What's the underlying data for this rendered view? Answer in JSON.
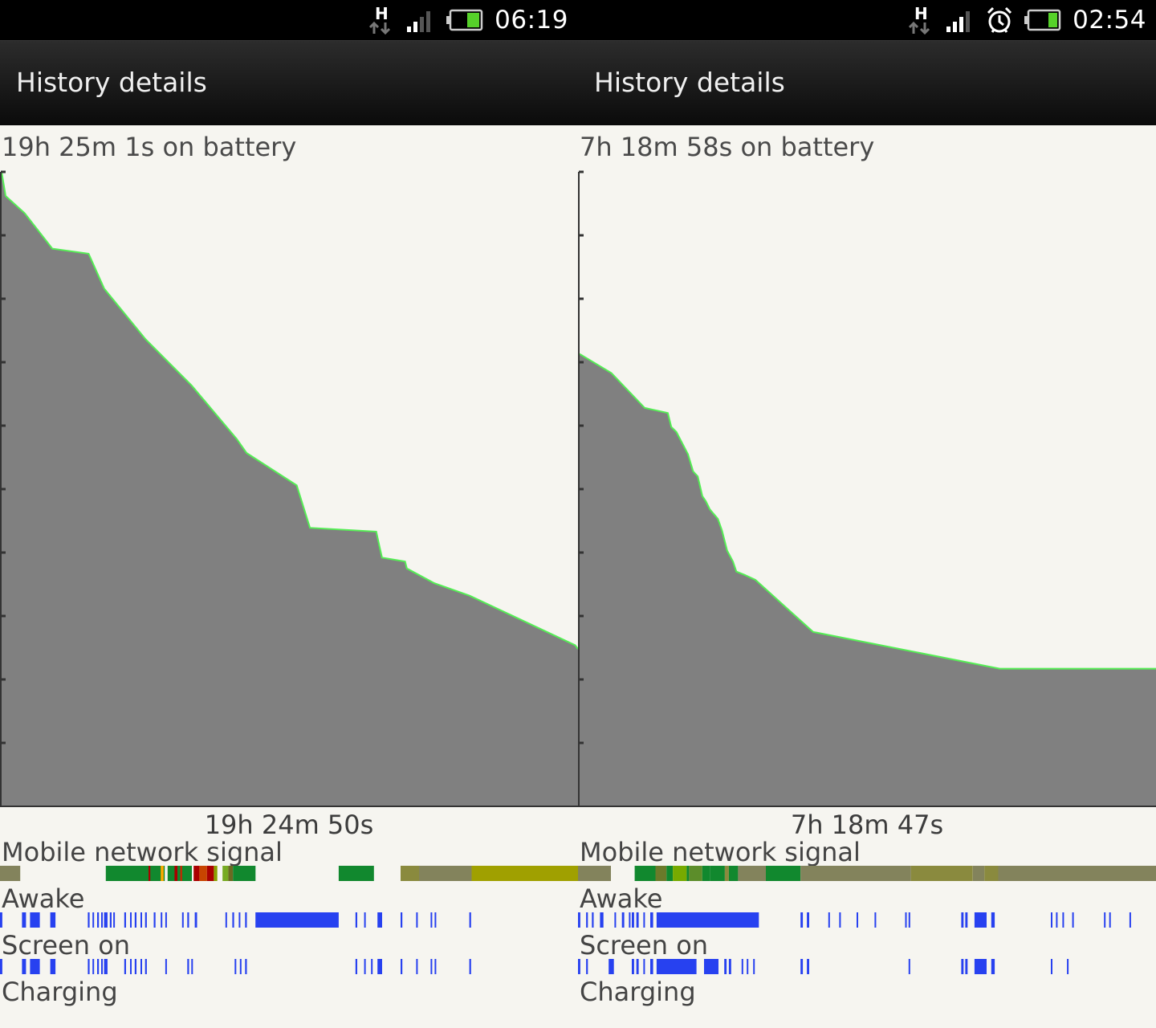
{
  "left": {
    "status": {
      "time": "06:19",
      "network_type": "H",
      "icons": [
        "hspa-data-icon",
        "signal-strength-icon",
        "battery-icon"
      ]
    },
    "title": "History details",
    "battery_duration": "19h 25m 1s on battery",
    "graph_duration": "19h 24m 50s",
    "rows": {
      "signal": "Mobile network signal",
      "awake": "Awake",
      "screen": "Screen on",
      "charging": "Charging"
    },
    "battery_curve": [
      [
        0,
        100
      ],
      [
        0.7,
        96.2
      ],
      [
        4,
        93.5
      ],
      [
        8.8,
        87.9
      ],
      [
        15.1,
        87.1
      ],
      [
        17.8,
        81.6
      ],
      [
        25,
        73.6
      ],
      [
        33,
        66.3
      ],
      [
        40.8,
        57.9
      ],
      [
        42.5,
        55.7
      ],
      [
        51.2,
        50.6
      ],
      [
        53.5,
        43.9
      ],
      [
        65,
        43.3
      ],
      [
        65.5,
        41.2
      ],
      [
        66,
        39.2
      ],
      [
        70,
        38.6
      ],
      [
        70.3,
        37.5
      ],
      [
        75,
        35.2
      ],
      [
        81.2,
        33.2
      ],
      [
        99.5,
        25.4
      ],
      [
        100,
        24.8
      ]
    ],
    "signal_segments": [
      [
        0,
        3.5,
        "#83835c"
      ],
      [
        18.3,
        28.5,
        "#11882e"
      ],
      [
        25.7,
        26,
        "#aa0000"
      ],
      [
        27.8,
        28.3,
        "#ffaa00"
      ],
      [
        29,
        33.2,
        "#11882e"
      ],
      [
        30.2,
        30.7,
        "#aa0000"
      ],
      [
        31.2,
        31.5,
        "#cc2200"
      ],
      [
        33.5,
        34.5,
        "#aa0000"
      ],
      [
        34.5,
        35.8,
        "#c84400"
      ],
      [
        35.8,
        37,
        "#aa0000"
      ],
      [
        37,
        37.6,
        "#8aa000"
      ],
      [
        38.5,
        39.5,
        "#77aa22"
      ],
      [
        39.5,
        40.3,
        "#6a6a22"
      ],
      [
        40.3,
        44.2,
        "#11882e"
      ],
      [
        58.6,
        64.7,
        "#11882e"
      ],
      [
        69.3,
        72.5,
        "#8a8a3e"
      ],
      [
        72.5,
        81.6,
        "#83835c"
      ],
      [
        81.6,
        100,
        "#a0a000"
      ]
    ],
    "awake_segments": [
      [
        0,
        0.4
      ],
      [
        3.8,
        4.5
      ],
      [
        5.2,
        6.9
      ],
      [
        8.7,
        9.6
      ],
      [
        15.2,
        15.5
      ],
      [
        16,
        16.2
      ],
      [
        16.8,
        17.1
      ],
      [
        17.5,
        17.7
      ],
      [
        18,
        18.6
      ],
      [
        19,
        19.3
      ],
      [
        19.6,
        19.8
      ],
      [
        21.5,
        21.8
      ],
      [
        22.5,
        22.7
      ],
      [
        23.3,
        23.6
      ],
      [
        24.3,
        24.5
      ],
      [
        25.1,
        25.4
      ],
      [
        26.6,
        26.9
      ],
      [
        27.8,
        28
      ],
      [
        28.6,
        28.8
      ],
      [
        31.5,
        31.7
      ],
      [
        32.4,
        32.7
      ],
      [
        33.7,
        34.1
      ],
      [
        39,
        39.2
      ],
      [
        40.2,
        40.5
      ],
      [
        41.3,
        41.5
      ],
      [
        42.4,
        42.7
      ],
      [
        44.2,
        58.6
      ],
      [
        61.5,
        61.8
      ],
      [
        63,
        63.2
      ],
      [
        65.3,
        66.1
      ],
      [
        69.3,
        69.6
      ],
      [
        72,
        72.2
      ],
      [
        74.5,
        74.7
      ],
      [
        75.2,
        75.4
      ],
      [
        81.2,
        81.5
      ]
    ],
    "screen_segments": [
      [
        0,
        0.4
      ],
      [
        3.8,
        4.5
      ],
      [
        5.2,
        6.9
      ],
      [
        8.7,
        9.6
      ],
      [
        15.2,
        15.5
      ],
      [
        16,
        16.2
      ],
      [
        16.8,
        17.1
      ],
      [
        17.5,
        17.7
      ],
      [
        18,
        18.6
      ],
      [
        21.5,
        21.8
      ],
      [
        22.5,
        22.7
      ],
      [
        23.3,
        23.6
      ],
      [
        24.3,
        24.5
      ],
      [
        25.1,
        25.4
      ],
      [
        28.6,
        28.8
      ],
      [
        32.4,
        32.7
      ],
      [
        33.1,
        33.3
      ],
      [
        40.6,
        40.8
      ],
      [
        41.5,
        41.7
      ],
      [
        42.4,
        42.7
      ],
      [
        61.5,
        61.8
      ],
      [
        63,
        63.2
      ],
      [
        64.2,
        64.4
      ],
      [
        65.3,
        66.1
      ],
      [
        69.3,
        69.6
      ],
      [
        72,
        72.2
      ],
      [
        74.5,
        74.7
      ],
      [
        75.2,
        75.4
      ],
      [
        81.2,
        81.5
      ]
    ]
  },
  "right": {
    "status": {
      "time": "02:54",
      "network_type": "H",
      "icons": [
        "hspa-data-icon",
        "signal-strength-icon",
        "alarm-clock-icon",
        "battery-icon"
      ]
    },
    "title": "History details",
    "battery_duration": "7h 18m 58s on battery",
    "graph_duration": "7h 18m 47s",
    "rows": {
      "signal": "Mobile network signal",
      "awake": "Awake",
      "screen": "Screen on",
      "charging": "Charging"
    },
    "battery_curve": [
      [
        0,
        71.3
      ],
      [
        5.5,
        68.3
      ],
      [
        11.3,
        62.8
      ],
      [
        15.3,
        62
      ],
      [
        15.9,
        59.8
      ],
      [
        16.8,
        59
      ],
      [
        18.8,
        55.5
      ],
      [
        19.7,
        52.8
      ],
      [
        20.5,
        52
      ],
      [
        21.3,
        48.9
      ],
      [
        21.9,
        48.1
      ],
      [
        22.6,
        46.8
      ],
      [
        24,
        45.3
      ],
      [
        24.7,
        43.5
      ],
      [
        25.6,
        40.3
      ],
      [
        26.6,
        38.6
      ],
      [
        27.2,
        37
      ],
      [
        28.6,
        36.5
      ],
      [
        30.5,
        35.7
      ],
      [
        40.5,
        27.5
      ],
      [
        72.9,
        21.7
      ],
      [
        100,
        21.7
      ]
    ],
    "signal_segments": [
      [
        0,
        5.7,
        "#83835c"
      ],
      [
        9.8,
        13.4,
        "#11882e"
      ],
      [
        13.4,
        15.3,
        "#6b7a2a"
      ],
      [
        15.3,
        16.4,
        "#11882e"
      ],
      [
        16.4,
        18.8,
        "#77aa00"
      ],
      [
        18.8,
        19.2,
        "#11882e"
      ],
      [
        19.2,
        21.5,
        "#5c8d2a"
      ],
      [
        21.5,
        22.8,
        "#11882e"
      ],
      [
        22.8,
        25.4,
        "#11882e"
      ],
      [
        25.4,
        26.1,
        "#8a8a3e"
      ],
      [
        26.1,
        27.7,
        "#11882e"
      ],
      [
        27.7,
        32.5,
        "#83835c"
      ],
      [
        32.5,
        38.5,
        "#11882e"
      ],
      [
        38.5,
        57.6,
        "#83835c"
      ],
      [
        57.6,
        68.3,
        "#8a8a3e"
      ],
      [
        68.3,
        70.3,
        "#83835c"
      ],
      [
        70.3,
        72.7,
        "#8a8a3e"
      ],
      [
        72.7,
        100,
        "#83835c"
      ]
    ],
    "awake_segments": [
      [
        -0.4,
        0
      ],
      [
        0.1,
        0.4
      ],
      [
        1.4,
        1.7
      ],
      [
        2.4,
        2.7
      ],
      [
        3.8,
        4.4
      ],
      [
        6.3,
        6.5
      ],
      [
        7.6,
        8
      ],
      [
        8.8,
        9
      ],
      [
        9.3,
        9.7
      ],
      [
        10.1,
        10.5
      ],
      [
        11.3,
        11.5
      ],
      [
        12.5,
        13
      ],
      [
        13.6,
        31.3
      ],
      [
        38.5,
        38.9
      ],
      [
        39.6,
        40
      ],
      [
        43.3,
        43.5
      ],
      [
        45.2,
        45.4
      ],
      [
        48.2,
        48.4
      ],
      [
        51.3,
        51.5
      ],
      [
        56.6,
        56.8
      ],
      [
        57.2,
        57.4
      ],
      [
        66.3,
        66.7
      ],
      [
        67,
        67.4
      ],
      [
        68.6,
        70.7
      ],
      [
        71.5,
        72.1
      ],
      [
        81.8,
        82
      ],
      [
        82.7,
        82.9
      ],
      [
        83.8,
        84
      ],
      [
        85.5,
        85.7
      ],
      [
        91,
        91.2
      ],
      [
        91.9,
        92.1
      ],
      [
        95.4,
        95.6
      ]
    ],
    "screen_segments": [
      [
        -0.4,
        0
      ],
      [
        0.1,
        0.4
      ],
      [
        1.4,
        1.7
      ],
      [
        5.3,
        6.2
      ],
      [
        9.3,
        9.7
      ],
      [
        10.1,
        10.5
      ],
      [
        11.3,
        11.5
      ],
      [
        12.5,
        13
      ],
      [
        13.6,
        20.5
      ],
      [
        21.8,
        24.3
      ],
      [
        25.3,
        25.7
      ],
      [
        26.1,
        26.5
      ],
      [
        28.3,
        28.5
      ],
      [
        29.2,
        29.4
      ],
      [
        30.3,
        30.5
      ],
      [
        38.5,
        38.9
      ],
      [
        39.6,
        40
      ],
      [
        57.2,
        57.4
      ],
      [
        66.3,
        66.7
      ],
      [
        67,
        67.4
      ],
      [
        68.6,
        70.7
      ],
      [
        71.5,
        72.1
      ],
      [
        81.8,
        82
      ],
      [
        84.6,
        84.8
      ]
    ]
  },
  "colors": {
    "curve_fill": "#808080",
    "curve_line": "#55ee55",
    "bar_blue": "#2741f0"
  }
}
